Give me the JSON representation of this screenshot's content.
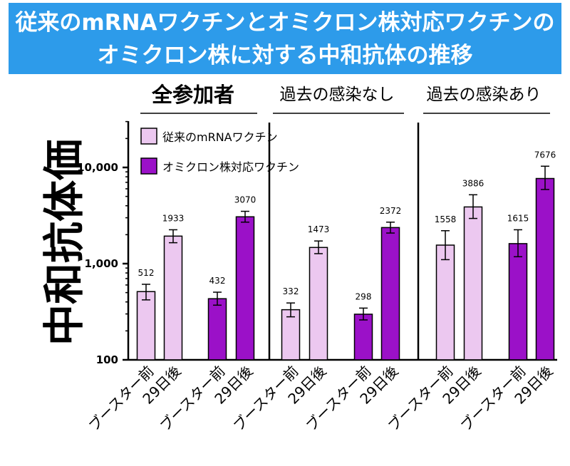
{
  "banner": {
    "line1": "従来のmRNAワクチンとオミクロン株対応ワクチンの",
    "line2": "オミクロン株に対する中和抗体の推移"
  },
  "colors": {
    "banner": "#2d9bea",
    "conventional": "#ecc8f0",
    "omicron": "#9b11c8",
    "axis": "#000000"
  },
  "chart_data": {
    "type": "bar",
    "yscale": "log",
    "ylabel": "中和抗体価",
    "ylim": [
      100,
      30000
    ],
    "yticks": [
      100,
      1000,
      10000
    ],
    "ytick_labels": [
      "100",
      "1,000",
      "10,000"
    ],
    "legend": [
      {
        "name": "従来のmRNAワクチン",
        "series": "conventional"
      },
      {
        "name": "オミクロン株対応ワクチン",
        "series": "omicron"
      }
    ],
    "panels": [
      {
        "title": "全参加者",
        "bars": [
          {
            "series": "conventional",
            "label": "ブースター前",
            "value": 512,
            "value_label": "512",
            "err_low": 420,
            "err_high": 610
          },
          {
            "series": "conventional",
            "label": "29日後",
            "value": 1933,
            "value_label": "1933",
            "err_low": 1650,
            "err_high": 2250
          },
          {
            "series": "omicron",
            "label": "ブースター前",
            "value": 432,
            "value_label": "432",
            "err_low": 370,
            "err_high": 505
          },
          {
            "series": "omicron",
            "label": "29日後",
            "value": 3070,
            "value_label": "3070",
            "err_low": 2700,
            "err_high": 3500
          }
        ]
      },
      {
        "title": "過去の感染なし",
        "bars": [
          {
            "series": "conventional",
            "label": "ブースター前",
            "value": 332,
            "value_label": "332",
            "err_low": 280,
            "err_high": 390
          },
          {
            "series": "conventional",
            "label": "29日後",
            "value": 1473,
            "value_label": "1473",
            "err_low": 1270,
            "err_high": 1720
          },
          {
            "series": "omicron",
            "label": "ブースター前",
            "value": 298,
            "value_label": "298",
            "err_low": 260,
            "err_high": 345
          },
          {
            "series": "omicron",
            "label": "29日後",
            "value": 2372,
            "value_label": "2372",
            "err_low": 2080,
            "err_high": 2700
          }
        ]
      },
      {
        "title": "過去の感染あり",
        "bars": [
          {
            "series": "conventional",
            "label": "ブースター前",
            "value": 1558,
            "value_label": "1558",
            "err_low": 1100,
            "err_high": 2200
          },
          {
            "series": "conventional",
            "label": "29日後",
            "value": 3886,
            "value_label": "3886",
            "err_low": 2950,
            "err_high": 5200
          },
          {
            "series": "omicron",
            "label": "ブースター前",
            "value": 1615,
            "value_label": "1615",
            "err_low": 1180,
            "err_high": 2250
          },
          {
            "series": "omicron",
            "label": "29日後",
            "value": 7676,
            "value_label": "7676",
            "err_low": 5900,
            "err_high": 10300
          }
        ]
      }
    ]
  }
}
